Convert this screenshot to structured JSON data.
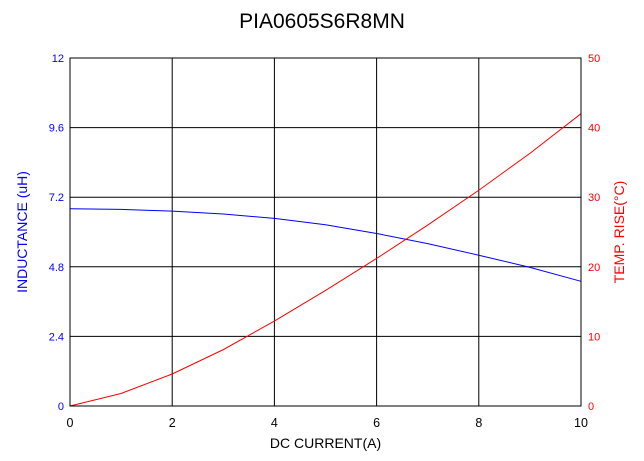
{
  "chart_data": {
    "type": "line",
    "title": "PIA0605S6R8MN",
    "xlabel": "DC CURRENT(A)",
    "ylabel_left": "INDUCTANCE (uH)",
    "ylabel_right": "TEMP. RISE(°C)",
    "xlim": [
      0,
      10
    ],
    "ylim_left": [
      0,
      12
    ],
    "ylim_right": [
      0,
      50
    ],
    "x_ticks": [
      "0",
      "2",
      "4",
      "6",
      "8",
      "10"
    ],
    "y_left_ticks": [
      "0",
      "2.4",
      "4.8",
      "7.2",
      "9.6",
      "12"
    ],
    "y_right_ticks": [
      "0",
      "10",
      "20",
      "30",
      "40",
      "50"
    ],
    "grid": true,
    "x": [
      0,
      1,
      2,
      3,
      4,
      5,
      6,
      7,
      8,
      9,
      10
    ],
    "series": [
      {
        "axis": "left",
        "color": "#0000ff",
        "values": [
          6.8,
          6.78,
          6.72,
          6.62,
          6.47,
          6.25,
          5.95,
          5.6,
          5.2,
          4.78,
          4.3
        ]
      },
      {
        "axis": "right",
        "color": "#ff0000",
        "values": [
          0,
          1.8,
          4.6,
          8.1,
          12.2,
          16.6,
          21.2,
          26.0,
          31.0,
          36.3,
          42.0
        ]
      }
    ]
  }
}
